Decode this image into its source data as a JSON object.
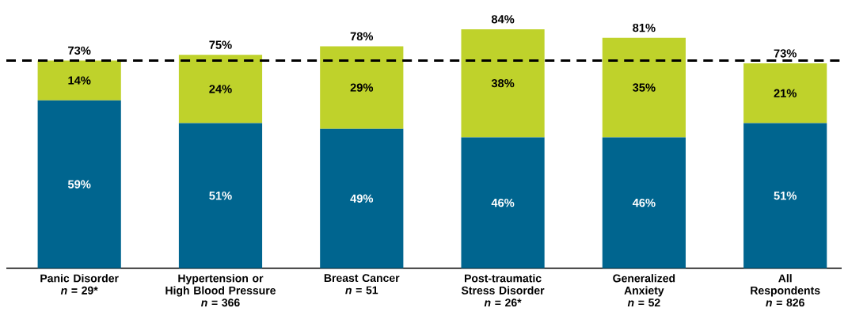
{
  "chart_data": {
    "type": "bar",
    "stacked": true,
    "categories": [
      "Panic Disorder\n*n* = 29*",
      "Hypertension or\nHigh Blood Pressure\n*n* = 366",
      "Breast Cancer\n*n* = 51",
      "Post-traumatic\nStress Disorder\n*n* = 26*",
      "Generalized\nAnxiety\n*n* = 52",
      "All\nRespondents\n*n* = 826"
    ],
    "series": [
      {
        "color": "#00658f",
        "values": [
          59,
          51,
          49,
          46,
          46,
          51
        ],
        "value_labels": [
          "59%",
          "51%",
          "49%",
          "46%",
          "46%",
          "51%"
        ]
      },
      {
        "color": "#bfd22b",
        "values": [
          14,
          24,
          29,
          38,
          35,
          21
        ],
        "value_labels": [
          "14%",
          "24%",
          "29%",
          "38%",
          "35%",
          "21%"
        ]
      }
    ],
    "totals": [
      "73%",
      "75%",
      "78%",
      "84%",
      "81%",
      "73%"
    ],
    "ref_lines": [
      {
        "axis": "y",
        "value": 73,
        "line_style": "dashed",
        "color": "#000000"
      }
    ],
    "tick_labels": "x"
  }
}
